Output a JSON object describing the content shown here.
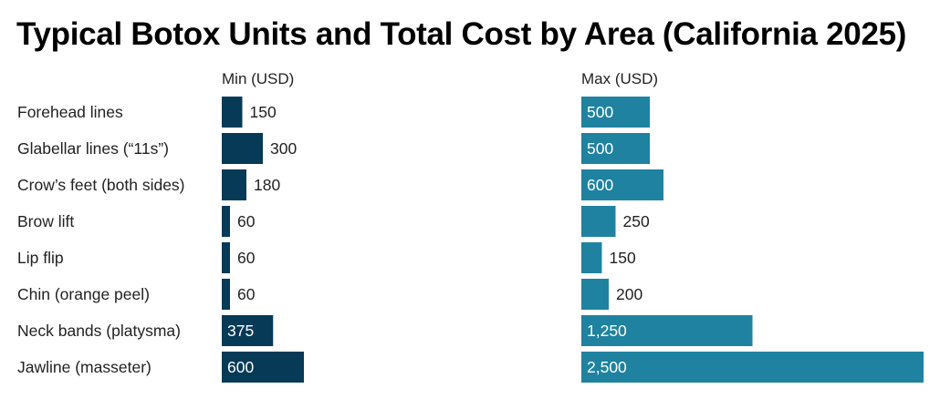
{
  "chart_data": {
    "type": "bar",
    "orientation": "horizontal",
    "title": "Typical Botox Units and Total Cost by Area (California 2025)",
    "categories": [
      "Forehead lines",
      "Glabellar lines (“11s”)",
      "Crow’s feet (both sides)",
      "Brow lift",
      "Lip flip",
      "Chin (orange peel)",
      "Neck bands (platysma)",
      "Jawline (masseter)"
    ],
    "series": [
      {
        "name": "Min (USD)",
        "values": [
          150,
          300,
          180,
          60,
          60,
          60,
          375,
          600
        ],
        "color": "#063a57"
      },
      {
        "name": "Max (USD)",
        "values": [
          500,
          500,
          600,
          250,
          150,
          200,
          1250,
          2500
        ],
        "color": "#1f82a0"
      }
    ],
    "grid": false,
    "data_labels": true
  }
}
